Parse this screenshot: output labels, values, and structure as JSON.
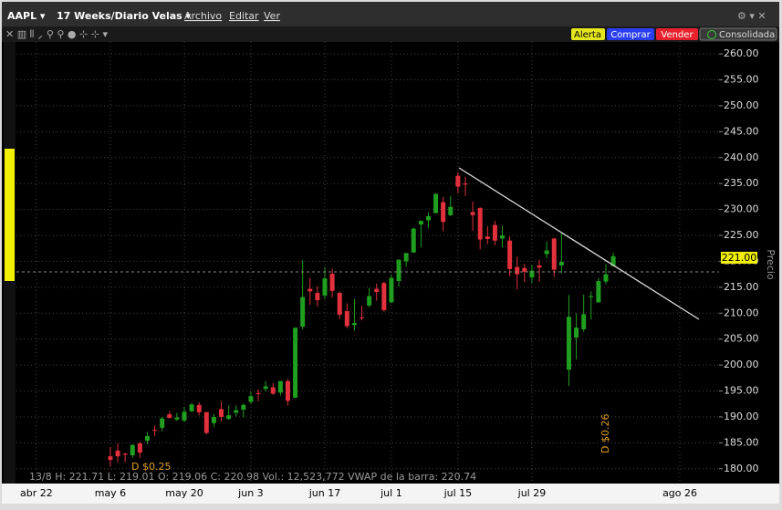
{
  "window": {
    "symbol": "AAPL ▾",
    "period": "17 Weeks/Diario Velas ▾",
    "menu": [
      "Archivo",
      "Editar",
      "Ver"
    ],
    "buttons": [
      "Alerta",
      "Comprar",
      "Vender",
      "Consolidada"
    ],
    "status": "13/8  H: 221.71  L: 219.01  O: 219.06  C: 220.98  Vol.: 12,523,772  VWAP de la barra: 220.74",
    "price_label": "221.00",
    "axis_title": "Precio",
    "dividends": [
      "D $0.25",
      "D $0.26"
    ]
  },
  "chart_data": {
    "type": "candlestick",
    "x": [
      10,
      11,
      12,
      13,
      14,
      15,
      16,
      17,
      18,
      19,
      20,
      21,
      22,
      23,
      24,
      25,
      26,
      27,
      28,
      29,
      30,
      31,
      32,
      33,
      34,
      35,
      36,
      37,
      38,
      39,
      40,
      41,
      42,
      43,
      44,
      45,
      46,
      47,
      48,
      49,
      50,
      51,
      52,
      53,
      54,
      55,
      56,
      57,
      58,
      59,
      60,
      61,
      62,
      63,
      64,
      65,
      66,
      67,
      68,
      69,
      70,
      71,
      72,
      73,
      74,
      75,
      76,
      77,
      78
    ],
    "open": [
      182.4,
      183.5,
      182.9,
      182.6,
      184.9,
      185.4,
      187.5,
      187.9,
      190.5,
      189.5,
      189.3,
      191.1,
      192.3,
      190.9,
      188.8,
      191.5,
      189.6,
      190.8,
      191.4,
      192.9,
      194.6,
      195.4,
      195.7,
      194.7,
      196.9,
      193.7,
      207.4,
      214.7,
      213.9,
      213.4,
      217.6,
      213.9,
      210.4,
      207.7,
      209.2,
      211.5,
      214.7,
      215.8,
      212.1,
      216.2,
      220.0,
      221.7,
      227.1,
      227.9,
      229.3,
      231.4,
      228.9,
      236.5,
      235.0,
      229.5,
      230.3,
      224.8,
      227.0,
      224.4,
      224.0,
      218.9,
      218.7,
      216.9,
      219.2,
      221.4,
      224.4,
      219.2,
      199.1,
      205.3,
      206.9,
      213.1,
      212.1,
      216.1,
      219.06
    ],
    "high": [
      184.2,
      184.9,
      183.1,
      184.7,
      185.1,
      187.1,
      188.3,
      190.0,
      191.1,
      190.8,
      191.9,
      192.7,
      192.8,
      191.0,
      190.6,
      193.0,
      192.2,
      192.2,
      192.6,
      194.9,
      195.3,
      196.9,
      196.5,
      196.9,
      197.3,
      207.2,
      220.2,
      216.8,
      215.2,
      218.9,
      218.6,
      214.2,
      211.9,
      212.7,
      211.4,
      214.9,
      215.7,
      216.1,
      217.5,
      220.4,
      221.6,
      226.5,
      227.9,
      229.4,
      233.1,
      232.4,
      232.6,
      237.2,
      236.3,
      231.5,
      230.4,
      226.8,
      227.8,
      226.9,
      224.8,
      220.9,
      219.5,
      219.3,
      220.3,
      223.8,
      224.5,
      225.6,
      213.5,
      209.99,
      213.6,
      214.2,
      216.8,
      219.5,
      221.71
    ],
    "low": [
      180.4,
      181.3,
      181.3,
      182.1,
      182.1,
      184.7,
      186.3,
      187.2,
      189.7,
      189.2,
      189.0,
      190.9,
      190.3,
      186.6,
      188.0,
      189.1,
      189.5,
      190.1,
      189.9,
      192.5,
      193.0,
      194.9,
      194.2,
      194.1,
      192.2,
      193.6,
      206.9,
      211.6,
      211.3,
      212.7,
      213.0,
      208.9,
      207.1,
      206.6,
      208.6,
      211.1,
      212.4,
      210.3,
      211.9,
      215.1,
      219.0,
      221.6,
      222.7,
      226.4,
      229.3,
      225.8,
      228.7,
      233.1,
      232.6,
      225.9,
      222.3,
      223.3,
      223.1,
      222.7,
      217.1,
      214.6,
      216.0,
      215.8,
      216.1,
      220.6,
      217.0,
      217.7,
      196.0,
      201.1,
      206.4,
      208.8,
      211.97,
      215.6,
      219.01
    ],
    "close": [
      181.7,
      182.4,
      182.7,
      184.6,
      183.1,
      186.3,
      187.4,
      189.7,
      189.8,
      189.9,
      191.0,
      192.4,
      190.9,
      186.9,
      190.0,
      190.0,
      190.3,
      191.3,
      192.3,
      194.0,
      194.4,
      195.9,
      194.5,
      196.9,
      193.1,
      207.2,
      213.1,
      214.2,
      212.5,
      216.7,
      214.3,
      209.7,
      207.5,
      208.1,
      209.1,
      213.3,
      214.1,
      210.6,
      216.8,
      220.3,
      221.6,
      226.3,
      227.8,
      228.7,
      233.0,
      227.6,
      230.5,
      234.4,
      234.8,
      228.9,
      224.2,
      224.3,
      224.0,
      225.0,
      218.5,
      217.5,
      218.0,
      218.2,
      218.8,
      222.1,
      218.4,
      219.9,
      209.3,
      207.2,
      209.8,
      213.3,
      216.2,
      217.5,
      220.98
    ],
    "up_color": "#1f9e1f",
    "down_color": "#e2303c",
    "xlim": [
      -2.7,
      92.3
    ],
    "xticks": [
      {
        "value": 0,
        "label": "abr 22"
      },
      {
        "value": 10,
        "label": "may 6"
      },
      {
        "value": 20,
        "label": "may 20"
      },
      {
        "value": 29,
        "label": "jun 3"
      },
      {
        "value": 39,
        "label": "jun 17"
      },
      {
        "value": 48,
        "label": "jul 1"
      },
      {
        "value": 57,
        "label": "jul 15"
      },
      {
        "value": 67,
        "label": "jul 29"
      },
      {
        "value": 87,
        "label": "ago 26"
      }
    ],
    "ylim": [
      177.5,
      262.3
    ],
    "yticks": [
      {
        "value": 180,
        "label": "180.00"
      },
      {
        "value": 185,
        "label": "185.00"
      },
      {
        "value": 190,
        "label": "190.00"
      },
      {
        "value": 195,
        "label": "195.00"
      },
      {
        "value": 200,
        "label": "200.00"
      },
      {
        "value": 205,
        "label": "205.00"
      },
      {
        "value": 210,
        "label": "210.00"
      },
      {
        "value": 215,
        "label": "215.00"
      },
      {
        "value": 220,
        "label": "220.00"
      },
      {
        "value": 225,
        "label": "225.00"
      },
      {
        "value": 230,
        "label": "230.00"
      },
      {
        "value": 235,
        "label": "235.00"
      },
      {
        "value": 240,
        "label": "240.00"
      },
      {
        "value": 245,
        "label": "245.00"
      },
      {
        "value": 250,
        "label": "250.00"
      },
      {
        "value": 255,
        "label": "255.00"
      },
      {
        "value": 260,
        "label": "260.00"
      }
    ],
    "grid": true
  }
}
